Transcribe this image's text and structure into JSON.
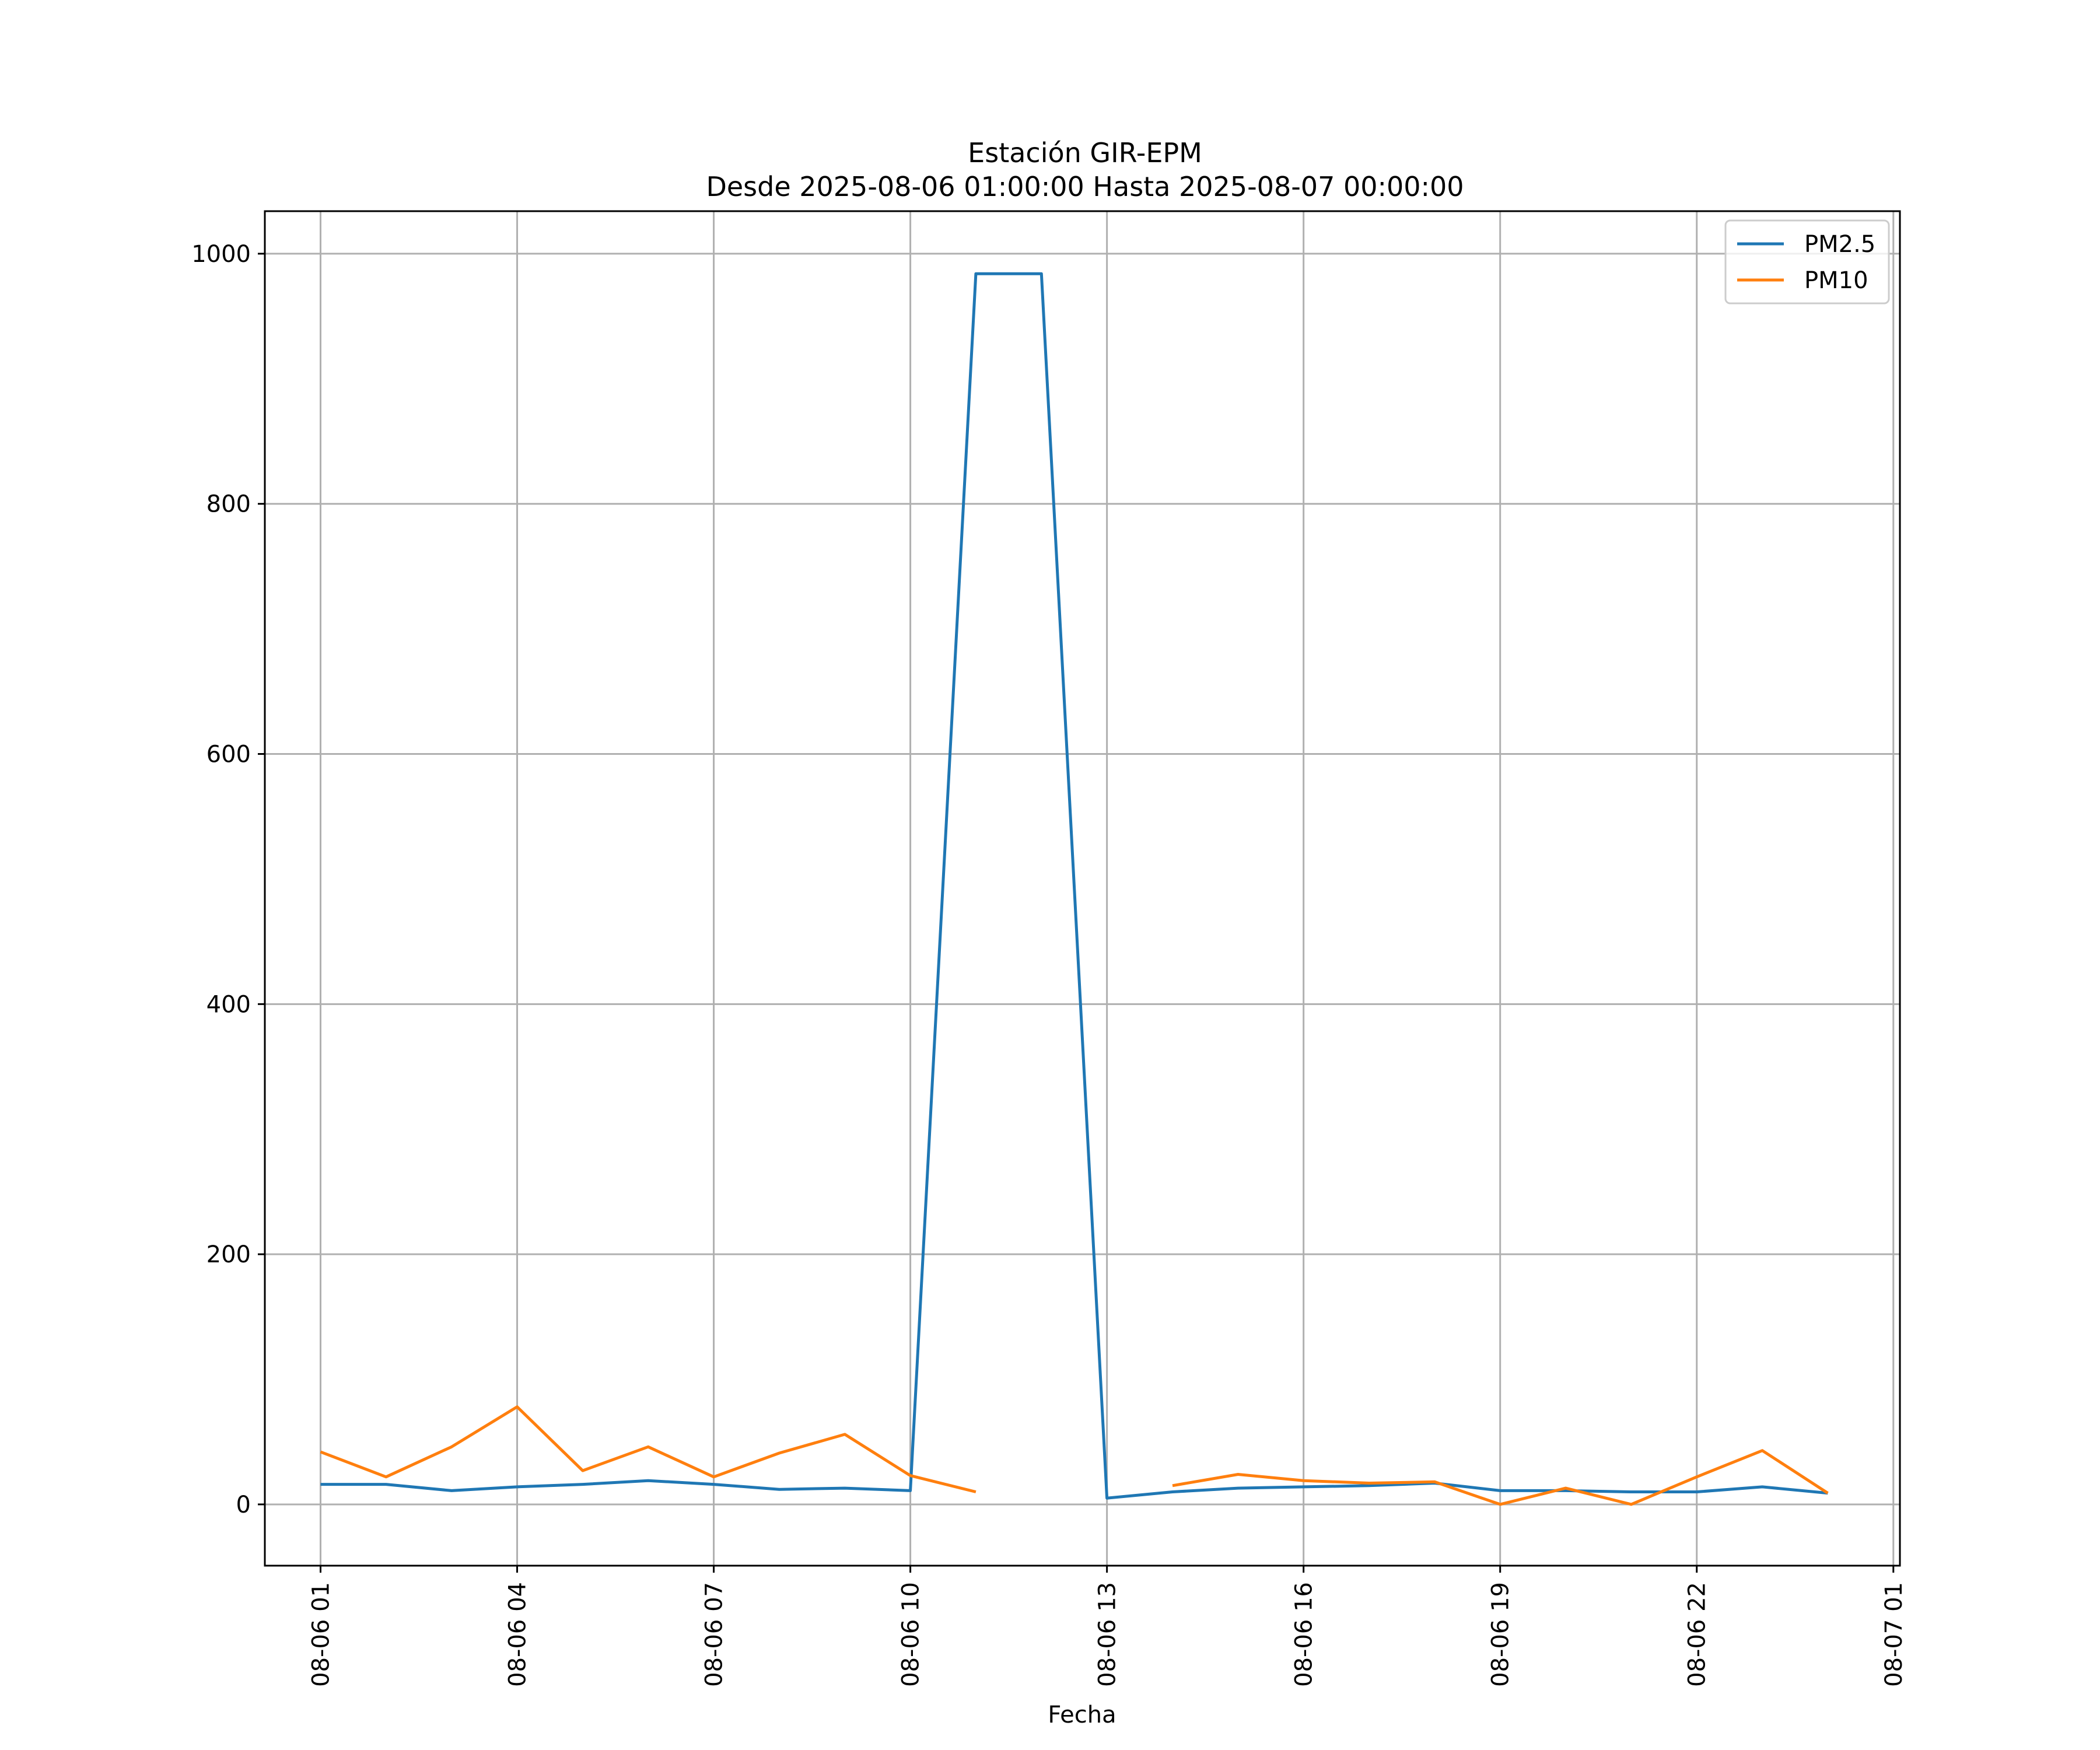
{
  "chart_data": {
    "type": "line",
    "title": "Estación GIR-EPM",
    "subtitle": "Desde 2025-08-06 01:00:00 Hasta 2025-08-07 00:00:00",
    "xlabel": "Fecha",
    "ylabel": "",
    "x": [
      "2025-08-06 01:00",
      "2025-08-06 02:00",
      "2025-08-06 03:00",
      "2025-08-06 04:00",
      "2025-08-06 05:00",
      "2025-08-06 06:00",
      "2025-08-06 07:00",
      "2025-08-06 08:00",
      "2025-08-06 09:00",
      "2025-08-06 10:00",
      "2025-08-06 11:00",
      "2025-08-06 12:00",
      "2025-08-06 13:00",
      "2025-08-06 14:00",
      "2025-08-06 15:00",
      "2025-08-06 16:00",
      "2025-08-06 17:00",
      "2025-08-06 18:00",
      "2025-08-06 19:00",
      "2025-08-06 20:00",
      "2025-08-06 21:00",
      "2025-08-06 22:00",
      "2025-08-06 23:00",
      "2025-08-07 00:00"
    ],
    "series": [
      {
        "name": "PM2.5",
        "color": "#1f77b4",
        "values": [
          16,
          16,
          11,
          14,
          16,
          19,
          16,
          12,
          13,
          11,
          984,
          984,
          5,
          10,
          13,
          14,
          15,
          17,
          11,
          11,
          10,
          10,
          14,
          9
        ]
      },
      {
        "name": "PM10",
        "color": "#ff7f0e",
        "values": [
          42,
          22,
          46,
          78,
          27,
          46,
          22,
          41,
          56,
          23,
          10,
          null,
          null,
          15,
          24,
          19,
          17,
          18,
          0,
          13,
          0,
          22,
          43,
          9
        ]
      }
    ],
    "x_ticks": [
      "08-06 01",
      "08-06 04",
      "08-06 07",
      "08-06 10",
      "08-06 13",
      "08-06 16",
      "08-06 19",
      "08-06 22",
      "08-07 01"
    ],
    "x_tick_values": [
      "2025-08-06 01:00",
      "2025-08-06 04:00",
      "2025-08-06 07:00",
      "2025-08-06 10:00",
      "2025-08-06 13:00",
      "2025-08-06 16:00",
      "2025-08-06 19:00",
      "2025-08-06 22:00",
      "2025-08-07 01:00"
    ],
    "xlim": [
      "2025-08-06 00:09",
      "2025-08-07 01:06"
    ],
    "y_ticks": [
      0,
      200,
      400,
      600,
      800,
      1000
    ],
    "ylim": [
      -49,
      1034
    ],
    "grid": true,
    "legend_position": "top-right"
  }
}
